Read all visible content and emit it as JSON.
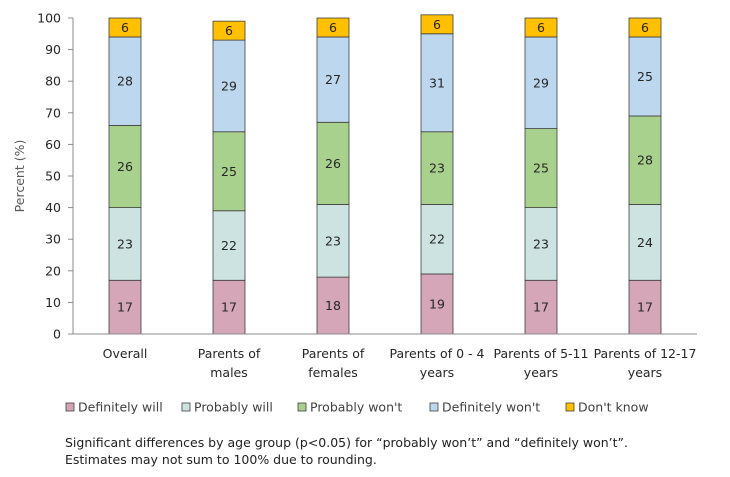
{
  "chart_data": {
    "type": "bar",
    "stacked": true,
    "title": "",
    "xlabel": "",
    "ylabel": "Percent (%)",
    "ylim": [
      0,
      100
    ],
    "yticks": [
      0,
      10,
      20,
      30,
      40,
      50,
      60,
      70,
      80,
      90,
      100
    ],
    "grid": false,
    "legend_position": "bottom",
    "categories": [
      [
        "Overall"
      ],
      [
        "Parents of",
        "males"
      ],
      [
        "Parents of",
        "females"
      ],
      [
        "Parents of 0 - 4",
        "years"
      ],
      [
        "Parents of 5-11",
        "years"
      ],
      [
        "Parents of 12-17",
        "years"
      ]
    ],
    "series": [
      {
        "name": "Definitely will",
        "color": "#d5a6b8",
        "values": [
          17,
          17,
          18,
          19,
          17,
          17
        ],
        "labels": [
          "17",
          "17",
          "18",
          "19",
          "17",
          "17"
        ]
      },
      {
        "name": "Probably will",
        "color": "#cce3e1",
        "values": [
          23,
          22,
          23,
          22,
          23,
          24
        ],
        "labels": [
          "23",
          "22",
          "23",
          "22",
          "23",
          "24"
        ]
      },
      {
        "name": "Probably won't",
        "color": "#a9d18e",
        "values": [
          26,
          25,
          26,
          23,
          25,
          28
        ],
        "labels": [
          "26",
          "25",
          "26",
          "23",
          "25",
          "28"
        ]
      },
      {
        "name": "Definitely won't",
        "color": "#bdd7ee",
        "values": [
          28,
          29,
          27,
          31,
          29,
          25
        ],
        "labels": [
          "28",
          "29",
          "27",
          "31",
          "29",
          "25"
        ]
      },
      {
        "name": "Don't know",
        "color": "#ffc000",
        "values": [
          6,
          6,
          6,
          6,
          6,
          6
        ],
        "labels": [
          "6",
          "6",
          "6",
          "6",
          "6",
          "6"
        ]
      }
    ]
  },
  "notes": {
    "line1": "Significant differences by age group (p<0.05) for “probably won’t” and “definitely won’t”.",
    "line2": "Estimates may not sum to 100% due to rounding."
  }
}
